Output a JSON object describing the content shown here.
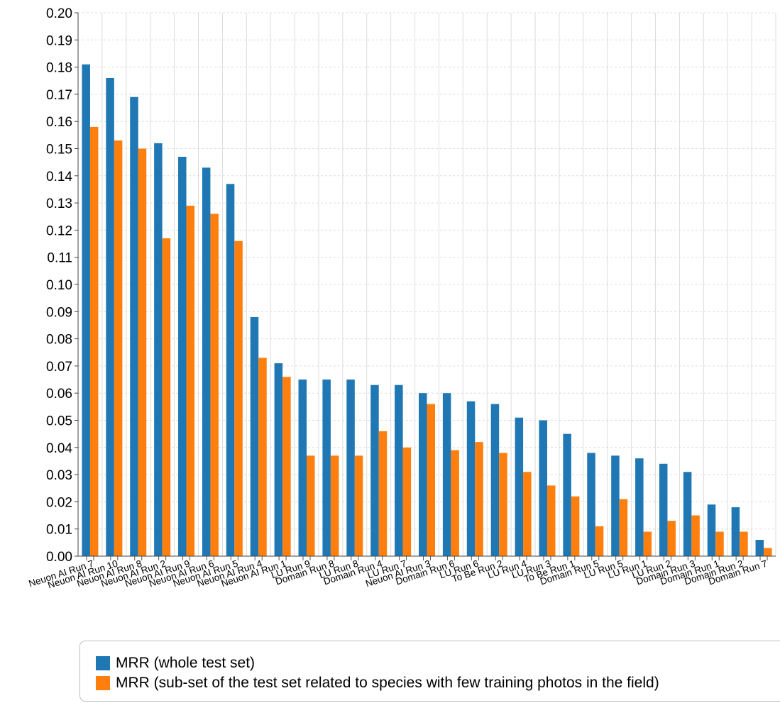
{
  "chart_data": {
    "type": "bar",
    "categories": [
      "Neuon AI Run 7",
      "Neuon AI Run 10",
      "Neuon AI Run 8",
      "Neuon AI Run 2",
      "Neuon AI Run 9",
      "Neuon AI Run 6",
      "Neuon AI Run 5",
      "Neuon AI Run 4",
      "Neuon AI Run 1",
      "LU Run 9",
      "Domain Run 8",
      "LU Run 8",
      "Domain Run 4",
      "LU Run 7",
      "Neuon AI Run 3",
      "Domain Run 6",
      "LU Run 6",
      "To Be Run 2",
      "LU Run 4",
      "LU Run 3",
      "To Be Run 1",
      "Domain Run 5",
      "LU Run 5",
      "LU Run 1",
      "LU Run 2",
      "Domain Run 3",
      "Domain Run 1",
      "Domain Run 2",
      "Domain Run 7"
    ],
    "series": [
      {
        "name": "MRR (whole test set)",
        "color": "#1f77b4",
        "values": [
          0.181,
          0.176,
          0.169,
          0.152,
          0.147,
          0.143,
          0.137,
          0.088,
          0.071,
          0.065,
          0.065,
          0.065,
          0.063,
          0.063,
          0.06,
          0.06,
          0.057,
          0.056,
          0.051,
          0.05,
          0.045,
          0.038,
          0.037,
          0.036,
          0.034,
          0.031,
          0.019,
          0.018,
          0.006
        ]
      },
      {
        "name": "MRR (sub-set of the test set related to species with few training photos in the field)",
        "color": "#ff7f0e",
        "values": [
          0.158,
          0.153,
          0.15,
          0.117,
          0.129,
          0.126,
          0.116,
          0.073,
          0.066,
          0.037,
          0.037,
          0.037,
          0.046,
          0.04,
          0.056,
          0.039,
          0.042,
          0.038,
          0.031,
          0.026,
          0.022,
          0.011,
          0.021,
          0.009,
          0.013,
          0.015,
          0.009,
          0.009,
          0.003
        ]
      }
    ],
    "ylim": [
      0,
      0.2
    ],
    "yticks": [
      "0.00",
      "0.01",
      "0.02",
      "0.03",
      "0.04",
      "0.05",
      "0.06",
      "0.07",
      "0.08",
      "0.09",
      "0.10",
      "0.11",
      "0.12",
      "0.13",
      "0.14",
      "0.15",
      "0.16",
      "0.17",
      "0.18",
      "0.19",
      "0.20"
    ],
    "grid": true,
    "legend_position": "bottom"
  }
}
